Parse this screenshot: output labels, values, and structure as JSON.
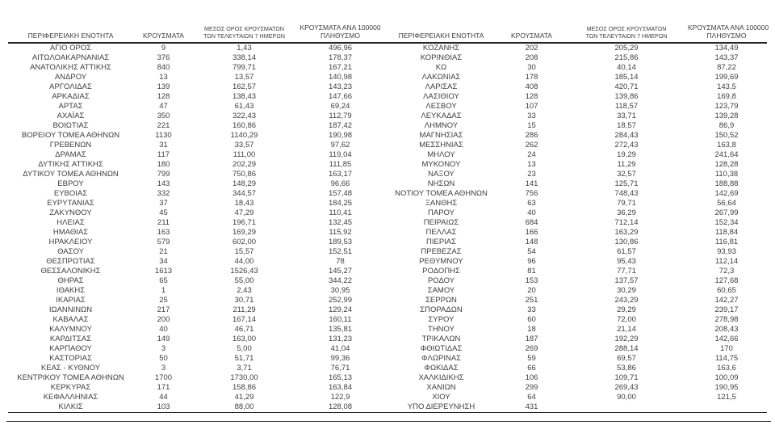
{
  "colors": {
    "background": "#ffffff",
    "text": "#3f3f3f",
    "rule": "#262626"
  },
  "table": {
    "columns": [
      {
        "line1": "ΠΕΡΙΦΕΡΕΙΑΚΗ ΕΝΟΤΗΤΑ",
        "line2": ""
      },
      {
        "line1": "ΚΡΟΥΣΜΑΤΑ",
        "line2": ""
      },
      {
        "line1": "ΜΕΣΟΣ ΟΡΟΣ ΚΡΟΥΣΜΑΤΩΝ",
        "line2": "ΤΩΝ ΤΕΛΕΥΤΑΙΩΝ 7 ΗΜΕΡΩΝ"
      },
      {
        "line1": "ΚΡΟΥΣΜΑΤΑ ΑΝΑ 100000",
        "line2": "ΠΛΗΘΥΣΜΟ"
      }
    ],
    "left_rows": [
      [
        "ΑΓΙΟ ΟΡΟΣ",
        "9",
        "1,43",
        "496,96"
      ],
      [
        "ΑΙΤΩΛΟΑΚΑΡΝΑΝΙΑΣ",
        "376",
        "338,14",
        "178,37"
      ],
      [
        "ΑΝΑΤΟΛΙΚΗΣ ΑΤΤΙΚΗΣ",
        "840",
        "799,71",
        "167,21"
      ],
      [
        "ΑΝΔΡΟΥ",
        "13",
        "13,57",
        "140,98"
      ],
      [
        "ΑΡΓΟΛΙΔΑΣ",
        "139",
        "162,57",
        "143,23"
      ],
      [
        "ΑΡΚΑΔΙΑΣ",
        "128",
        "138,43",
        "147,66"
      ],
      [
        "ΑΡΤΑΣ",
        "47",
        "61,43",
        "69,24"
      ],
      [
        "ΑΧΑΪΑΣ",
        "350",
        "322,43",
        "112,79"
      ],
      [
        "ΒΟΙΩΤΙΑΣ",
        "221",
        "160,86",
        "187,42"
      ],
      [
        "ΒΟΡΕΙΟΥ ΤΟΜΕΑ ΑΘΗΝΩΝ",
        "1130",
        "1140,29",
        "190,98"
      ],
      [
        "ΓΡΕΒΕΝΩΝ",
        "31",
        "33,57",
        "97,62"
      ],
      [
        "ΔΡΑΜΑΣ",
        "117",
        "111,00",
        "119,04"
      ],
      [
        "ΔΥΤΙΚΗΣ ΑΤΤΙΚΗΣ",
        "180",
        "202,29",
        "111,85"
      ],
      [
        "ΔΥΤΙΚΟΥ ΤΟΜΕΑ ΑΘΗΝΩΝ",
        "799",
        "750,86",
        "163,17"
      ],
      [
        "ΕΒΡΟΥ",
        "143",
        "148,29",
        "96,66"
      ],
      [
        "ΕΥΒΟΙΑΣ",
        "332",
        "344,57",
        "157,48"
      ],
      [
        "ΕΥΡΥΤΑΝΙΑΣ",
        "37",
        "18,43",
        "184,25"
      ],
      [
        "ΖΑΚΥΝΘΟΥ",
        "45",
        "47,29",
        "110,41"
      ],
      [
        "ΗΛΕΙΑΣ",
        "211",
        "196,71",
        "132,45"
      ],
      [
        "ΗΜΑΘΙΑΣ",
        "163",
        "169,29",
        "115,92"
      ],
      [
        "ΗΡΑΚΛΕΙΟΥ",
        "579",
        "602,00",
        "189,53"
      ],
      [
        "ΘΑΣΟΥ",
        "21",
        "15,57",
        "152,51"
      ],
      [
        "ΘΕΣΠΡΩΤΙΑΣ",
        "34",
        "44,00",
        "78"
      ],
      [
        "ΘΕΣΣΑΛΟΝΙΚΗΣ",
        "1613",
        "1526,43",
        "145,27"
      ],
      [
        "ΘΗΡΑΣ",
        "65",
        "55,00",
        "344,22"
      ],
      [
        "ΙΘΑΚΗΣ",
        "1",
        "2,43",
        "30,95"
      ],
      [
        "ΙΚΑΡΙΑΣ",
        "25",
        "30,71",
        "252,99"
      ],
      [
        "ΙΩΑΝΝΙΝΩΝ",
        "217",
        "211,29",
        "129,24"
      ],
      [
        "ΚΑΒΑΛΑΣ",
        "200",
        "167,14",
        "160,11"
      ],
      [
        "ΚΑΛΥΜΝΟΥ",
        "40",
        "46,71",
        "135,81"
      ],
      [
        "ΚΑΡΔΙΤΣΑΣ",
        "149",
        "163,00",
        "131,23"
      ],
      [
        "ΚΑΡΠΑΘΟΥ",
        "3",
        "5,00",
        "41,04"
      ],
      [
        "ΚΑΣΤΟΡΙΑΣ",
        "50",
        "51,71",
        "99,36"
      ],
      [
        "ΚΕΑΣ - ΚΥΘΝΟΥ",
        "3",
        "3,71",
        "76,71"
      ],
      [
        "ΚΕΝΤΡΙΚΟΥ ΤΟΜΕΑ ΑΘΗΝΩΝ",
        "1700",
        "1730,00",
        "165,13"
      ],
      [
        "ΚΕΡΚΥΡΑΣ",
        "171",
        "158,86",
        "163,84"
      ],
      [
        "ΚΕΦΑΛΛΗΝΙΑΣ",
        "44",
        "41,29",
        "122,9"
      ],
      [
        "ΚΙΛΚΙΣ",
        "103",
        "88,00",
        "128,08"
      ]
    ],
    "right_rows": [
      [
        "ΚΟΖΑΝΗΣ",
        "202",
        "205,29",
        "134,49"
      ],
      [
        "ΚΟΡΙΝΘΙΑΣ",
        "208",
        "215,86",
        "143,37"
      ],
      [
        "ΚΩ",
        "30",
        "40,14",
        "87,22"
      ],
      [
        "ΛΑΚΩΝΙΑΣ",
        "178",
        "185,14",
        "199,69"
      ],
      [
        "ΛΑΡΙΣΑΣ",
        "408",
        "420,71",
        "143,5"
      ],
      [
        "ΛΑΣΙΘΙΟΥ",
        "128",
        "139,86",
        "169,8"
      ],
      [
        "ΛΕΣΒΟΥ",
        "107",
        "118,57",
        "123,79"
      ],
      [
        "ΛΕΥΚΑΔΑΣ",
        "33",
        "33,71",
        "139,28"
      ],
      [
        "ΛΗΜΝΟΥ",
        "15",
        "18,57",
        "86,9"
      ],
      [
        "ΜΑΓΝΗΣΙΑΣ",
        "286",
        "284,43",
        "150,52"
      ],
      [
        "ΜΕΣΣΗΝΙΑΣ",
        "262",
        "272,43",
        "163,8"
      ],
      [
        "ΜΗΛΟΥ",
        "24",
        "19,29",
        "241,64"
      ],
      [
        "ΜΥΚΟΝΟΥ",
        "13",
        "11,29",
        "128,28"
      ],
      [
        "ΝΑΞΟΥ",
        "23",
        "32,57",
        "110,38"
      ],
      [
        "ΝΗΣΩΝ",
        "141",
        "125,71",
        "188,88"
      ],
      [
        "ΝΟΤΙΟΥ ΤΟΜΕΑ ΑΘΗΝΩΝ",
        "756",
        "748,43",
        "142,69"
      ],
      [
        "ΞΑΝΘΗΣ",
        "63",
        "79,71",
        "56,64"
      ],
      [
        "ΠΑΡΟΥ",
        "40",
        "36,29",
        "267,99"
      ],
      [
        "ΠΕΙΡΑΙΩΣ",
        "684",
        "712,14",
        "152,34"
      ],
      [
        "ΠΕΛΛΑΣ",
        "166",
        "163,29",
        "118,84"
      ],
      [
        "ΠΙΕΡΙΑΣ",
        "148",
        "130,86",
        "116,81"
      ],
      [
        "ΠΡΕΒΕΖΑΣ",
        "54",
        "61,57",
        "93,93"
      ],
      [
        "ΡΕΘΥΜΝΟΥ",
        "96",
        "95,43",
        "112,14"
      ],
      [
        "ΡΟΔΟΠΗΣ",
        "81",
        "77,71",
        "72,3"
      ],
      [
        "ΡΟΔΟΥ",
        "153",
        "137,57",
        "127,68"
      ],
      [
        "ΣΑΜΟΥ",
        "20",
        "30,29",
        "60,65"
      ],
      [
        "ΣΕΡΡΩΝ",
        "251",
        "243,29",
        "142,27"
      ],
      [
        "ΣΠΟΡΑΔΩΝ",
        "33",
        "29,29",
        "239,17"
      ],
      [
        "ΣΥΡΟΥ",
        "60",
        "72,00",
        "278,98"
      ],
      [
        "ΤΗΝΟΥ",
        "18",
        "21,14",
        "208,43"
      ],
      [
        "ΤΡΙΚΑΛΩΝ",
        "187",
        "192,29",
        "142,66"
      ],
      [
        "ΦΘΙΩΤΙΔΑΣ",
        "269",
        "288,14",
        "170"
      ],
      [
        "ΦΛΩΡΙΝΑΣ",
        "59",
        "69,57",
        "114,75"
      ],
      [
        "ΦΩΚΙΔΑΣ",
        "66",
        "53,86",
        "163,6"
      ],
      [
        "ΧΑΛΚΙΔΙΚΗΣ",
        "106",
        "109,71",
        "100,09"
      ],
      [
        "ΧΑΝΙΩΝ",
        "299",
        "269,43",
        "190,95"
      ],
      [
        "ΧΙΟΥ",
        "64",
        "90,00",
        "121,5"
      ],
      [
        "ΥΠΟ ΔΙΕΡΕΥΝΗΣΗ",
        "431",
        "",
        ""
      ]
    ]
  }
}
